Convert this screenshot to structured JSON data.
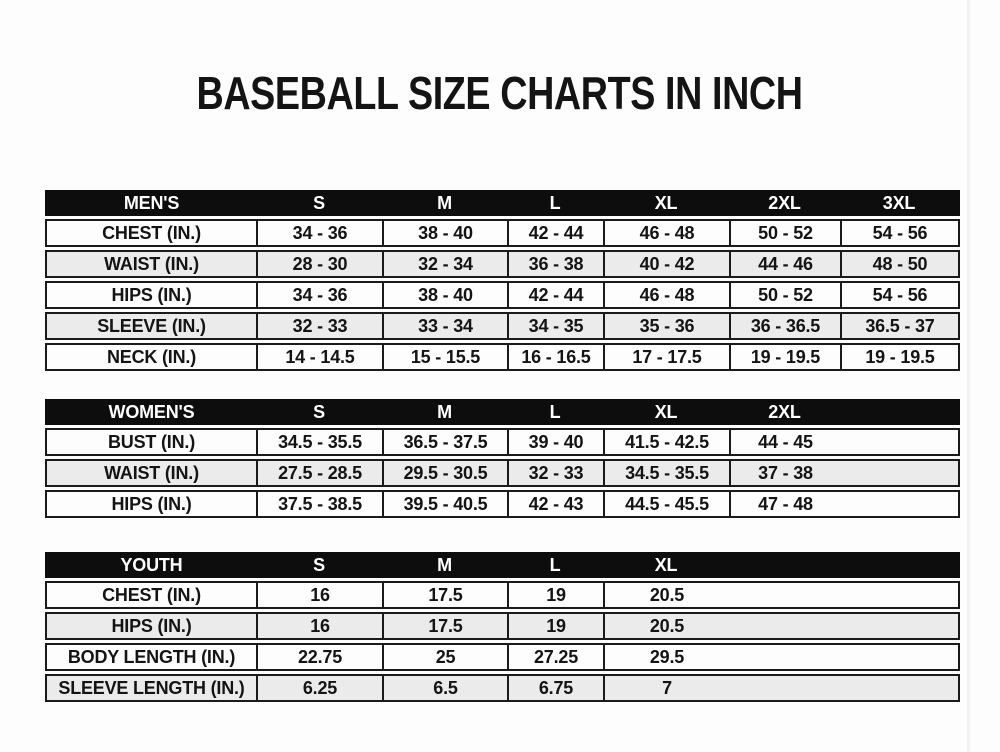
{
  "title": "BASEBALL SIZE CHARTS IN INCH",
  "colors": {
    "page_bg": "#fdfdfd",
    "header_bg": "#0d0d0d",
    "header_text": "#ffffff",
    "row_bg": "#fdfdfd",
    "row_alt_bg": "#ebebeb",
    "border": "#1b1b1b",
    "text": "#141414"
  },
  "tables": [
    {
      "id": "mens",
      "header": [
        "MEN'S",
        "S",
        "M",
        "L",
        "XL",
        "2XL",
        "3XL"
      ],
      "rows": [
        {
          "label": "CHEST (IN.)",
          "values": [
            "34 - 36",
            "38 - 40",
            "42 - 44",
            "46 - 48",
            "50 - 52",
            "54 - 56"
          ]
        },
        {
          "label": "WAIST (IN.)",
          "values": [
            "28 - 30",
            "32 - 34",
            "36 - 38",
            "40 - 42",
            "44 - 46",
            "48 - 50"
          ]
        },
        {
          "label": "HIPS (IN.)",
          "values": [
            "34 - 36",
            "38 - 40",
            "42 - 44",
            "46 - 48",
            "50 - 52",
            "54 - 56"
          ]
        },
        {
          "label": "SLEEVE (IN.)",
          "values": [
            "32 - 33",
            "33 - 34",
            "34 - 35",
            "35 - 36",
            "36 - 36.5",
            "36.5 - 37"
          ]
        },
        {
          "label": "NECK (IN.)",
          "values": [
            "14 - 14.5",
            "15 - 15.5",
            "16 - 16.5",
            "17 - 17.5",
            "19 - 19.5",
            "19 - 19.5"
          ]
        }
      ]
    },
    {
      "id": "womens",
      "header": [
        "WOMEN'S",
        "S",
        "M",
        "L",
        "XL",
        "2XL"
      ],
      "rows": [
        {
          "label": "BUST (IN.)",
          "values": [
            "34.5 - 35.5",
            "36.5 - 37.5",
            "39 - 40",
            "41.5 - 42.5",
            "44 - 45"
          ]
        },
        {
          "label": "WAIST (IN.)",
          "values": [
            "27.5 - 28.5",
            "29.5 - 30.5",
            "32 - 33",
            "34.5 - 35.5",
            "37 - 38"
          ]
        },
        {
          "label": "HIPS (IN.)",
          "values": [
            "37.5 - 38.5",
            "39.5 - 40.5",
            "42 - 43",
            "44.5 - 45.5",
            "47 - 48"
          ]
        }
      ]
    },
    {
      "id": "youth",
      "header": [
        "YOUTH",
        "S",
        "M",
        "L",
        "XL"
      ],
      "rows": [
        {
          "label": "CHEST (IN.)",
          "values": [
            "16",
            "17.5",
            "19",
            "20.5"
          ]
        },
        {
          "label": "HIPS (IN.)",
          "values": [
            "16",
            "17.5",
            "19",
            "20.5"
          ]
        },
        {
          "label": "BODY LENGTH (IN.)",
          "values": [
            "22.75",
            "25",
            "27.25",
            "29.5"
          ]
        },
        {
          "label": "SLEEVE LENGTH (IN.)",
          "values": [
            "6.25",
            "6.5",
            "6.75",
            "7"
          ]
        }
      ]
    }
  ]
}
